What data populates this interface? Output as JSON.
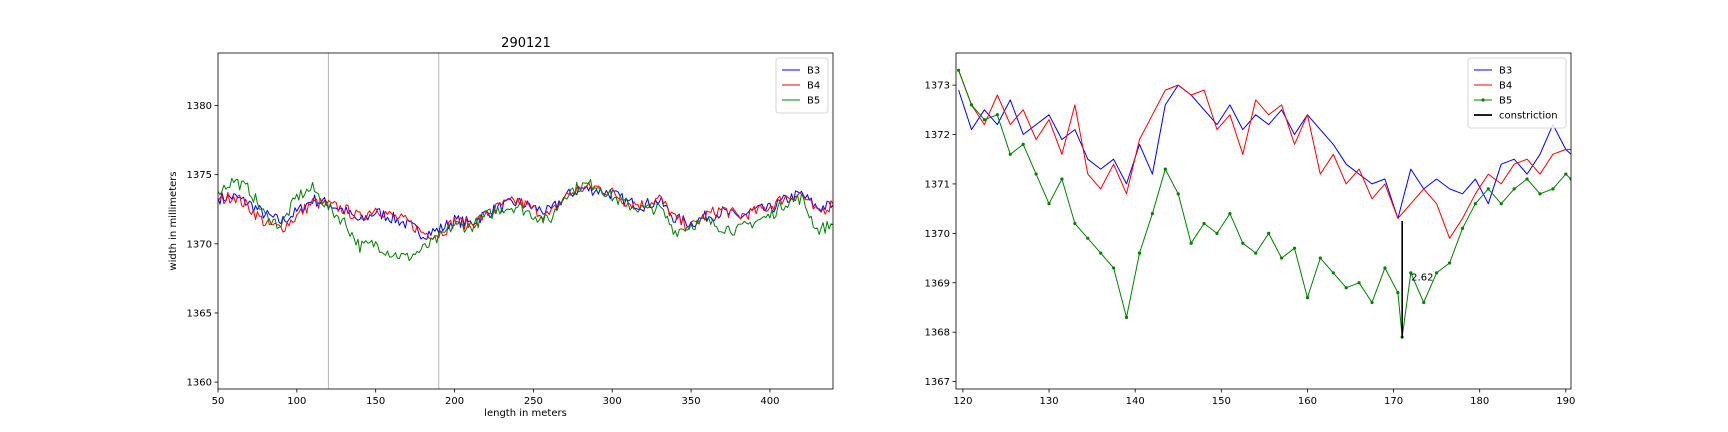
{
  "figure": {
    "title": "290121"
  },
  "chart_data": [
    {
      "type": "line",
      "title": "290121",
      "xlabel": "length in meters",
      "ylabel": "width in millimeters",
      "xlim": [
        50,
        440
      ],
      "ylim": [
        1359.5,
        1383.8
      ],
      "xticks": [
        50,
        100,
        150,
        200,
        250,
        300,
        350,
        400
      ],
      "yticks": [
        1360,
        1365,
        1370,
        1375,
        1380
      ],
      "vlines": [
        120,
        190
      ],
      "legend": {
        "position": "top-right",
        "entries": [
          "B3",
          "B4",
          "B5"
        ]
      },
      "grid": false,
      "series": [
        {
          "name": "B3",
          "color": "#0000ff",
          "x": [
            50,
            60,
            70,
            80,
            90,
            100,
            110,
            120,
            130,
            140,
            150,
            160,
            170,
            180,
            190,
            200,
            210,
            220,
            230,
            240,
            250,
            260,
            270,
            280,
            290,
            300,
            310,
            320,
            330,
            340,
            350,
            360,
            370,
            380,
            390,
            400,
            410,
            420,
            430,
            440
          ],
          "y": [
            1373.3,
            1373.4,
            1372.9,
            1372.1,
            1371.6,
            1372.3,
            1373.2,
            1372.9,
            1372.4,
            1371.6,
            1372.3,
            1371.9,
            1371.4,
            1370.7,
            1371.0,
            1371.7,
            1371.5,
            1372.2,
            1372.7,
            1373.0,
            1372.6,
            1372.3,
            1373.4,
            1374.0,
            1373.9,
            1373.6,
            1373.0,
            1372.8,
            1373.1,
            1371.8,
            1371.5,
            1372.0,
            1372.3,
            1371.9,
            1372.4,
            1372.5,
            1373.2,
            1373.6,
            1372.6,
            1372.8
          ]
        },
        {
          "name": "B4",
          "color": "#ff0000",
          "x": [
            50,
            60,
            70,
            80,
            90,
            100,
            110,
            120,
            130,
            140,
            150,
            160,
            170,
            180,
            190,
            200,
            210,
            220,
            230,
            240,
            250,
            260,
            270,
            280,
            290,
            300,
            310,
            320,
            330,
            340,
            350,
            360,
            370,
            380,
            390,
            400,
            410,
            420,
            430,
            440
          ],
          "y": [
            1373.1,
            1373.5,
            1372.6,
            1371.5,
            1371.1,
            1372.0,
            1373.0,
            1372.8,
            1372.5,
            1371.9,
            1372.6,
            1372.0,
            1371.6,
            1370.8,
            1370.7,
            1371.6,
            1371.4,
            1372.1,
            1372.8,
            1373.1,
            1372.5,
            1372.0,
            1373.4,
            1374.0,
            1374.1,
            1373.7,
            1373.0,
            1372.8,
            1373.3,
            1371.8,
            1371.2,
            1372.1,
            1372.5,
            1372.0,
            1372.3,
            1372.7,
            1373.4,
            1373.6,
            1372.2,
            1372.9
          ]
        },
        {
          "name": "B5",
          "color": "#008000",
          "x": [
            50,
            60,
            70,
            80,
            90,
            100,
            110,
            120,
            130,
            140,
            150,
            160,
            170,
            180,
            190,
            200,
            210,
            220,
            230,
            240,
            250,
            260,
            270,
            280,
            290,
            300,
            310,
            320,
            330,
            340,
            350,
            360,
            370,
            380,
            390,
            400,
            410,
            420,
            430,
            440
          ],
          "y": [
            1373.8,
            1374.6,
            1373.9,
            1372.0,
            1371.3,
            1373.4,
            1374.0,
            1372.6,
            1371.6,
            1369.8,
            1370.0,
            1369.3,
            1369.0,
            1369.6,
            1370.4,
            1371.4,
            1371.2,
            1372.0,
            1372.6,
            1372.7,
            1372.1,
            1371.6,
            1373.6,
            1374.2,
            1374.3,
            1373.4,
            1372.8,
            1372.5,
            1372.6,
            1370.9,
            1371.4,
            1371.6,
            1371.2,
            1371.0,
            1371.6,
            1372.0,
            1373.0,
            1373.3,
            1371.0,
            1371.4
          ]
        }
      ]
    },
    {
      "type": "line",
      "title": "",
      "xlabel": "",
      "ylabel": "",
      "xlim": [
        119.2,
        190.6
      ],
      "ylim": [
        1366.85,
        1373.65
      ],
      "xticks": [
        120,
        130,
        140,
        150,
        160,
        170,
        180,
        190
      ],
      "yticks": [
        1367,
        1368,
        1369,
        1370,
        1371,
        1372,
        1373
      ],
      "legend": {
        "position": "top-right",
        "entries": [
          "B3",
          "B4",
          "B5",
          "constriction"
        ]
      },
      "grid": false,
      "constriction": {
        "x": 171,
        "y_top": 1370.25,
        "y_bottom": 1367.88,
        "label": "2.62"
      },
      "series": [
        {
          "name": "B3",
          "color": "#0000ff",
          "x": [
            119.5,
            121,
            122.5,
            124,
            125.5,
            127,
            128.5,
            130,
            131.5,
            133,
            134.5,
            136,
            137.5,
            139,
            140.5,
            142,
            143.5,
            145,
            146.5,
            148,
            149.5,
            151,
            152.5,
            154,
            155.5,
            157,
            158.5,
            160,
            161.5,
            163,
            164.5,
            166,
            167.5,
            169,
            170.5,
            172,
            173.5,
            175,
            176.5,
            178,
            179.5,
            181,
            182.5,
            184,
            185.5,
            187,
            188.5,
            190,
            190.6
          ],
          "y": [
            1372.9,
            1372.1,
            1372.5,
            1372.2,
            1372.7,
            1372.0,
            1372.2,
            1372.4,
            1371.9,
            1372.1,
            1371.5,
            1371.3,
            1371.5,
            1371.0,
            1371.8,
            1371.2,
            1372.6,
            1373.0,
            1372.8,
            1372.5,
            1372.2,
            1372.6,
            1372.1,
            1372.4,
            1372.2,
            1372.5,
            1372.0,
            1372.4,
            1372.1,
            1371.8,
            1371.4,
            1371.2,
            1371.0,
            1371.1,
            1370.3,
            1371.3,
            1370.9,
            1371.1,
            1370.9,
            1370.8,
            1371.1,
            1370.6,
            1371.4,
            1371.5,
            1371.2,
            1371.6,
            1372.2,
            1371.7,
            1371.6
          ]
        },
        {
          "name": "B4",
          "color": "#ff0000",
          "x": [
            119.5,
            121,
            122.5,
            124,
            125.5,
            127,
            128.5,
            130,
            131.5,
            133,
            134.5,
            136,
            137.5,
            139,
            140.5,
            142,
            143.5,
            145,
            146.5,
            148,
            149.5,
            151,
            152.5,
            154,
            155.5,
            157,
            158.5,
            160,
            161.5,
            163,
            164.5,
            166,
            167.5,
            169,
            170.5,
            172,
            173.5,
            175,
            176.5,
            178,
            179.5,
            181,
            182.5,
            184,
            185.5,
            187,
            188.5,
            190,
            190.6
          ],
          "y": [
            1373.3,
            1372.6,
            1372.2,
            1372.8,
            1372.2,
            1372.5,
            1371.9,
            1372.3,
            1371.6,
            1372.6,
            1371.2,
            1370.9,
            1371.4,
            1370.8,
            1371.9,
            1372.4,
            1372.9,
            1373.0,
            1372.8,
            1372.9,
            1372.1,
            1372.4,
            1371.6,
            1372.7,
            1372.4,
            1372.6,
            1371.8,
            1372.4,
            1371.2,
            1371.6,
            1371.0,
            1371.3,
            1370.7,
            1371.0,
            1370.3,
            1370.6,
            1370.9,
            1370.6,
            1369.9,
            1370.3,
            1370.8,
            1371.2,
            1371.0,
            1371.4,
            1371.5,
            1371.2,
            1371.6,
            1371.7,
            1371.7
          ]
        },
        {
          "name": "B5",
          "color": "#008000",
          "markers": true,
          "x": [
            119.5,
            121,
            122.5,
            124,
            125.5,
            127,
            128.5,
            130,
            131.5,
            133,
            134.5,
            136,
            137.5,
            139,
            140.5,
            142,
            143.5,
            145,
            146.5,
            148,
            149.5,
            151,
            152.5,
            154,
            155.5,
            157,
            158.5,
            160,
            161.5,
            163,
            164.5,
            166,
            167.5,
            169,
            170.5,
            171,
            172,
            173.5,
            175,
            176.5,
            178,
            179.5,
            181,
            182.5,
            184,
            185.5,
            187,
            188.5,
            190,
            190.6
          ],
          "y": [
            1373.3,
            1372.6,
            1372.3,
            1372.4,
            1371.6,
            1371.8,
            1371.2,
            1370.6,
            1371.1,
            1370.2,
            1369.9,
            1369.6,
            1369.3,
            1368.3,
            1369.6,
            1370.4,
            1371.3,
            1370.8,
            1369.8,
            1370.2,
            1370.0,
            1370.4,
            1369.8,
            1369.6,
            1370.0,
            1369.5,
            1369.7,
            1368.7,
            1369.5,
            1369.2,
            1368.9,
            1369.0,
            1368.6,
            1369.3,
            1368.8,
            1367.9,
            1369.2,
            1368.6,
            1369.2,
            1369.4,
            1370.1,
            1370.6,
            1370.9,
            1370.6,
            1370.9,
            1371.1,
            1370.8,
            1370.9,
            1371.2,
            1371.1
          ]
        }
      ]
    }
  ]
}
